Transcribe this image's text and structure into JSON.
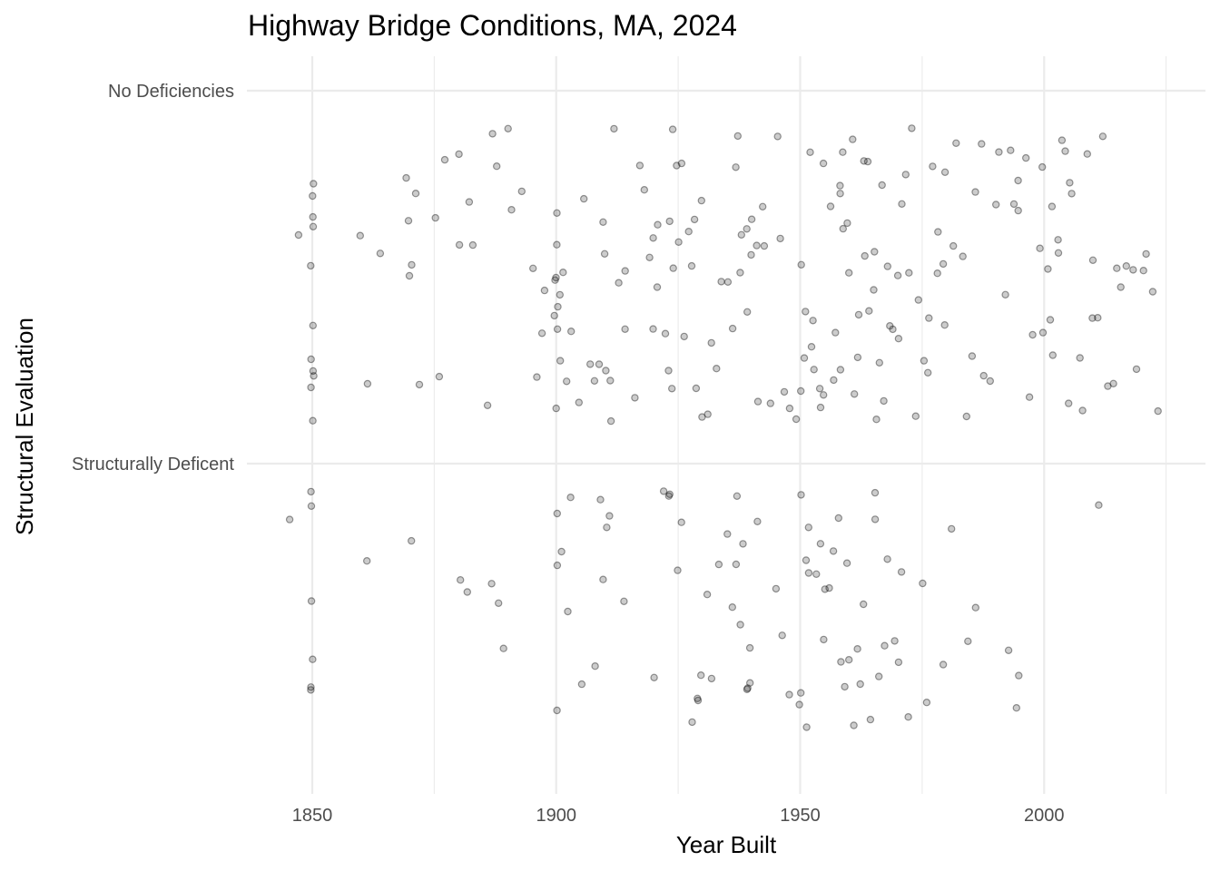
{
  "chart_data": {
    "type": "scatter",
    "title": "Highway Bridge Conditions, MA, 2024",
    "xlabel": "Year Built",
    "ylabel": "Structural Evaluation",
    "x_ticks": [
      1850,
      1900,
      1950,
      2000
    ],
    "xlim": [
      1842,
      2026
    ],
    "categories": [
      "No Deficiencies",
      "Structurally Deficent"
    ],
    "grid": true,
    "jitter": "vertical",
    "point_alpha": 0.2,
    "series": [
      {
        "category": "No Deficiencies",
        "years": [
          1850,
          1850,
          1850,
          1850,
          1850,
          1850,
          1850,
          1850,
          1850,
          1850,
          1850,
          1847,
          1860,
          1861,
          1864,
          1869,
          1870,
          1870,
          1870,
          1871,
          1872,
          1875,
          1876,
          1877,
          1880,
          1880,
          1882,
          1883,
          1886,
          1887,
          1888,
          1890,
          1891,
          1893,
          1895,
          1896,
          1897,
          1898,
          1900,
          1900,
          1900,
          1900,
          1900,
          1900,
          1900,
          1900,
          1901,
          1901,
          1901,
          1902,
          1903,
          1905,
          1906,
          1907,
          1908,
          1909,
          1910,
          1910,
          1910,
          1911,
          1911,
          1912,
          1913,
          1914,
          1914,
          1916,
          1917,
          1918,
          1919,
          1920,
          1920,
          1921,
          1921,
          1922,
          1923,
          1923,
          1924,
          1924,
          1924,
          1925,
          1925,
          1926,
          1926,
          1927,
          1928,
          1928,
          1929,
          1930,
          1930,
          1931,
          1932,
          1933,
          1934,
          1935,
          1936,
          1937,
          1937,
          1938,
          1938,
          1939,
          1939,
          1940,
          1940,
          1941,
          1941,
          1942,
          1943,
          1944,
          1945,
          1946,
          1947,
          1948,
          1949,
          1950,
          1950,
          1951,
          1951,
          1952,
          1952,
          1953,
          1953,
          1954,
          1954,
          1955,
          1955,
          1956,
          1957,
          1957,
          1958,
          1958,
          1958,
          1959,
          1959,
          1960,
          1960,
          1961,
          1961,
          1962,
          1962,
          1963,
          1963,
          1964,
          1964,
          1965,
          1965,
          1966,
          1966,
          1967,
          1967,
          1968,
          1968,
          1969,
          1970,
          1970,
          1971,
          1972,
          1972,
          1973,
          1974,
          1974,
          1975,
          1976,
          1976,
          1977,
          1978,
          1978,
          1979,
          1980,
          1980,
          1981,
          1982,
          1983,
          1984,
          1985,
          1986,
          1987,
          1988,
          1989,
          1990,
          1991,
          1992,
          1993,
          1994,
          1995,
          1995,
          1996,
          1997,
          1998,
          1999,
          2000,
          2000,
          2001,
          2001,
          2002,
          2002,
          2003,
          2003,
          2004,
          2004,
          2005,
          2005,
          2006,
          2007,
          2008,
          2009,
          2010,
          2010,
          2011,
          2012,
          2013,
          2014,
          2015,
          2016,
          2017,
          2018,
          2019,
          2020,
          2021,
          2022,
          2023
        ]
      },
      {
        "category": "Structurally Deficent",
        "years": [
          1845,
          1850,
          1850,
          1850,
          1850,
          1850,
          1850,
          1861,
          1870,
          1880,
          1882,
          1887,
          1888,
          1889,
          1900,
          1900,
          1900,
          1901,
          1903,
          1902,
          1905,
          1908,
          1909,
          1910,
          1910,
          1911,
          1914,
          1920,
          1922,
          1923,
          1923,
          1925,
          1926,
          1928,
          1929,
          1929,
          1930,
          1931,
          1932,
          1933,
          1935,
          1936,
          1937,
          1937,
          1938,
          1938,
          1939,
          1939,
          1940,
          1940,
          1941,
          1945,
          1946,
          1948,
          1950,
          1950,
          1950,
          1951,
          1951,
          1952,
          1952,
          1953,
          1954,
          1955,
          1955,
          1956,
          1957,
          1958,
          1958,
          1959,
          1960,
          1960,
          1961,
          1962,
          1962,
          1963,
          1964,
          1965,
          1965,
          1966,
          1967,
          1968,
          1969,
          1970,
          1971,
          1972,
          1975,
          1976,
          1979,
          1981,
          1984,
          1986,
          1993,
          1994,
          1995,
          2011
        ]
      }
    ]
  }
}
